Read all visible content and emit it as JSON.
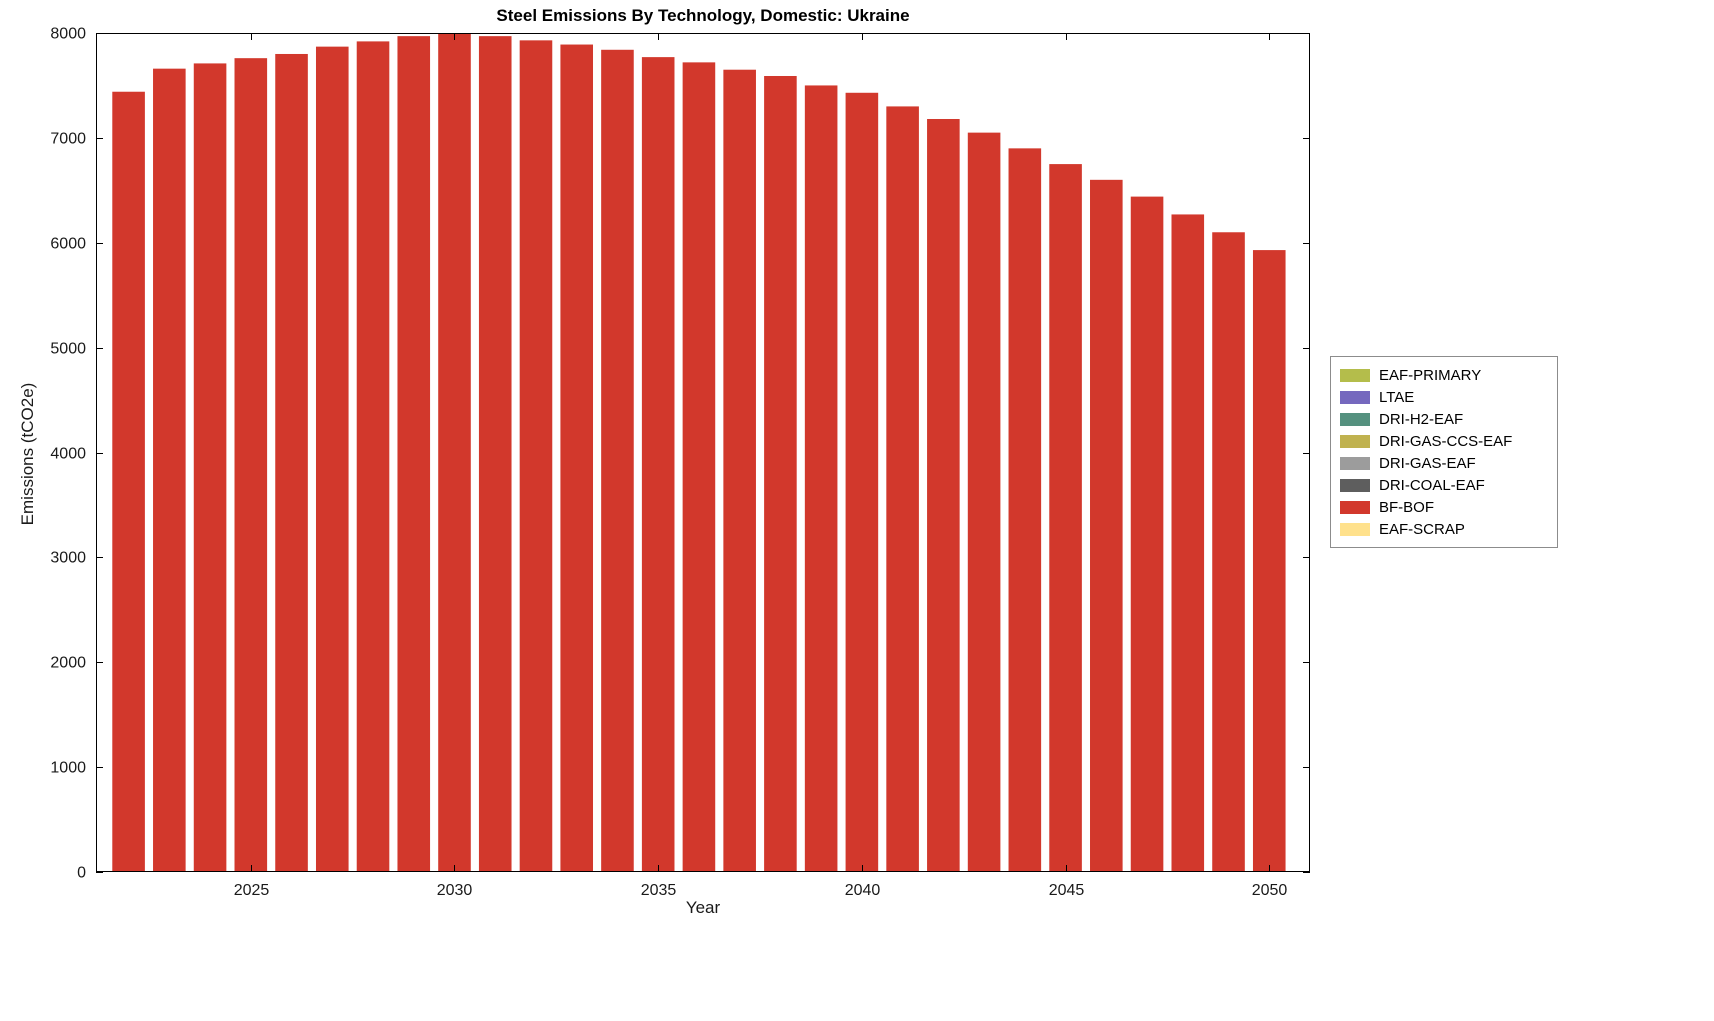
{
  "chart_data": {
    "type": "bar",
    "title": "Steel Emissions By Technology, Domestic: Ukraine",
    "xlabel": "Year",
    "ylabel": "Emissions (tCO2e)",
    "categories": [
      2022,
      2023,
      2024,
      2025,
      2026,
      2027,
      2028,
      2029,
      2030,
      2031,
      2032,
      2033,
      2034,
      2035,
      2036,
      2037,
      2038,
      2039,
      2040,
      2041,
      2042,
      2043,
      2044,
      2045,
      2046,
      2047,
      2048,
      2049,
      2050
    ],
    "series": [
      {
        "name": "BF-BOF",
        "color": "#D2382C",
        "values": [
          7440,
          7660,
          7710,
          7760,
          7800,
          7870,
          7920,
          7970,
          8000,
          7970,
          7930,
          7890,
          7840,
          7770,
          7720,
          7650,
          7590,
          7500,
          7430,
          7300,
          7180,
          7050,
          6900,
          6750,
          6600,
          6440,
          6270,
          6100,
          5930
        ]
      }
    ],
    "xticks": [
      2025,
      2030,
      2035,
      2040,
      2045,
      2050
    ],
    "yticks": [
      0,
      1000,
      2000,
      3000,
      4000,
      5000,
      6000,
      7000,
      8000
    ],
    "xlim": [
      2021.2,
      2051
    ],
    "ylim": [
      0,
      8000
    ],
    "grid": false,
    "legend_position": "right-outside",
    "legend_entries": [
      {
        "label": "EAF-PRIMARY",
        "color": "#B4BD4B"
      },
      {
        "label": "LTAE",
        "color": "#7568BE"
      },
      {
        "label": "DRI-H2-EAF",
        "color": "#55917F"
      },
      {
        "label": "DRI-GAS-CCS-EAF",
        "color": "#C0B24F"
      },
      {
        "label": "DRI-GAS-EAF",
        "color": "#9C9C9C"
      },
      {
        "label": "DRI-COAL-EAF",
        "color": "#5E5E5E"
      },
      {
        "label": "BF-BOF",
        "color": "#D2382C"
      },
      {
        "label": "EAF-SCRAP",
        "color": "#FFE18C"
      }
    ]
  }
}
